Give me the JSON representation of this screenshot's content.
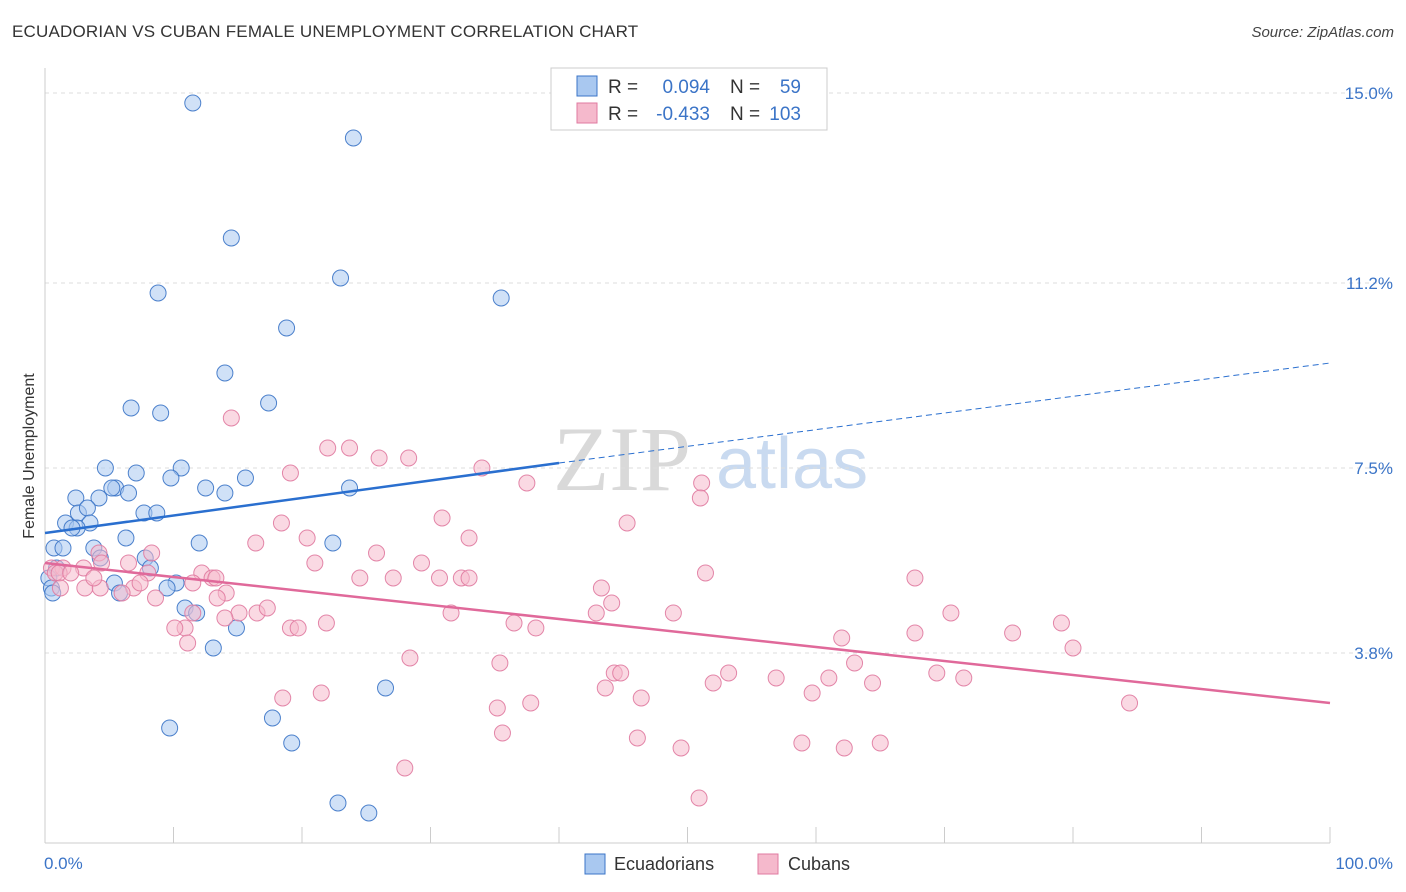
{
  "title": "ECUADORIAN VS CUBAN FEMALE UNEMPLOYMENT CORRELATION CHART",
  "source": "Source: ZipAtlas.com",
  "watermark": {
    "zip": "ZIP",
    "atlas": "atlas"
  },
  "colors": {
    "blue": "#3b74c7",
    "blue_fill": "#a9c8f0",
    "blue_line": "#2a6fcf",
    "pink": "#e07aa0",
    "pink_fill": "#f5b9cc",
    "pink_line": "#e0699a",
    "grid": "#dddddd"
  },
  "legend": {
    "rows": [
      {
        "r_label": "R =",
        "r_value": "0.094",
        "n_label": "N =",
        "n_value": "59"
      },
      {
        "r_label": "R =",
        "r_value": "-0.433",
        "n_label": "N =",
        "n_value": "103"
      }
    ]
  },
  "bottom_legend": {
    "items": [
      "Ecuadorians",
      "Cubans"
    ]
  },
  "chart_data": {
    "type": "scatter",
    "title": "ECUADORIAN VS CUBAN FEMALE UNEMPLOYMENT CORRELATION CHART",
    "xlabel": "",
    "ylabel": "Female Unemployment",
    "xlim": [
      0,
      100
    ],
    "ylim": [
      0,
      15.5
    ],
    "x_tick_labels": [
      "0.0%",
      "100.0%"
    ],
    "y_ticks": [
      3.8,
      7.5,
      11.2,
      15.0
    ],
    "y_tick_labels": [
      "3.8%",
      "7.5%",
      "11.2%",
      "15.0%"
    ],
    "series": [
      {
        "name": "Ecuadorians",
        "trend": {
          "x0": 0,
          "y0": 6.2,
          "x1": 40,
          "y1": 7.6,
          "x_dashed_end": 100,
          "y_dashed_end": 9.6
        },
        "points": [
          [
            11.5,
            14.8
          ],
          [
            24.0,
            14.1
          ],
          [
            14.5,
            12.1
          ],
          [
            23.0,
            11.3
          ],
          [
            8.8,
            11.0
          ],
          [
            35.5,
            10.9
          ],
          [
            18.8,
            10.3
          ],
          [
            14.0,
            9.4
          ],
          [
            17.4,
            8.8
          ],
          [
            6.7,
            8.7
          ],
          [
            9.0,
            8.6
          ],
          [
            10.6,
            7.5
          ],
          [
            4.7,
            7.5
          ],
          [
            7.1,
            7.4
          ],
          [
            9.8,
            7.3
          ],
          [
            15.6,
            7.3
          ],
          [
            23.7,
            7.1
          ],
          [
            12.5,
            7.1
          ],
          [
            5.5,
            7.1
          ],
          [
            5.2,
            7.1
          ],
          [
            6.5,
            7.0
          ],
          [
            14.0,
            7.0
          ],
          [
            2.4,
            6.9
          ],
          [
            4.2,
            6.9
          ],
          [
            2.6,
            6.6
          ],
          [
            3.3,
            6.7
          ],
          [
            7.7,
            6.6
          ],
          [
            8.7,
            6.6
          ],
          [
            1.6,
            6.4
          ],
          [
            3.5,
            6.4
          ],
          [
            2.5,
            6.3
          ],
          [
            2.1,
            6.3
          ],
          [
            6.3,
            6.1
          ],
          [
            22.4,
            6.0
          ],
          [
            12.0,
            6.0
          ],
          [
            0.7,
            5.9
          ],
          [
            1.4,
            5.9
          ],
          [
            3.8,
            5.9
          ],
          [
            4.3,
            5.7
          ],
          [
            7.8,
            5.7
          ],
          [
            0.9,
            5.5
          ],
          [
            8.2,
            5.5
          ],
          [
            0.3,
            5.3
          ],
          [
            5.4,
            5.2
          ],
          [
            10.2,
            5.2
          ],
          [
            9.5,
            5.1
          ],
          [
            0.5,
            5.1
          ],
          [
            0.6,
            5.0
          ],
          [
            5.8,
            5.0
          ],
          [
            10.9,
            4.7
          ],
          [
            11.8,
            4.6
          ],
          [
            14.9,
            4.3
          ],
          [
            13.1,
            3.9
          ],
          [
            26.5,
            3.1
          ],
          [
            17.7,
            2.5
          ],
          [
            9.7,
            2.3
          ],
          [
            19.2,
            2.0
          ],
          [
            22.8,
            0.8
          ],
          [
            25.2,
            0.6
          ]
        ]
      },
      {
        "name": "Cubans",
        "trend": {
          "x0": 0,
          "y0": 5.6,
          "x1": 100,
          "y1": 2.8
        },
        "points": [
          [
            14.5,
            8.5
          ],
          [
            22.0,
            7.9
          ],
          [
            23.7,
            7.9
          ],
          [
            26.0,
            7.7
          ],
          [
            28.3,
            7.7
          ],
          [
            34.0,
            7.5
          ],
          [
            19.1,
            7.4
          ],
          [
            37.5,
            7.2
          ],
          [
            51.1,
            7.2
          ],
          [
            51.0,
            6.9
          ],
          [
            30.9,
            6.5
          ],
          [
            45.3,
            6.4
          ],
          [
            18.4,
            6.4
          ],
          [
            20.4,
            6.1
          ],
          [
            33.0,
            6.1
          ],
          [
            16.4,
            6.0
          ],
          [
            25.8,
            5.8
          ],
          [
            8.3,
            5.8
          ],
          [
            4.2,
            5.8
          ],
          [
            4.4,
            5.6
          ],
          [
            6.5,
            5.6
          ],
          [
            21.0,
            5.6
          ],
          [
            29.3,
            5.6
          ],
          [
            0.5,
            5.5
          ],
          [
            1.4,
            5.5
          ],
          [
            3.0,
            5.5
          ],
          [
            0.8,
            5.4
          ],
          [
            1.1,
            5.4
          ],
          [
            2.0,
            5.4
          ],
          [
            8.0,
            5.4
          ],
          [
            12.2,
            5.4
          ],
          [
            13.0,
            5.3
          ],
          [
            24.5,
            5.3
          ],
          [
            27.1,
            5.3
          ],
          [
            30.7,
            5.3
          ],
          [
            32.4,
            5.3
          ],
          [
            33.0,
            5.3
          ],
          [
            51.4,
            5.4
          ],
          [
            67.7,
            5.3
          ],
          [
            11.5,
            5.2
          ],
          [
            1.2,
            5.1
          ],
          [
            3.1,
            5.1
          ],
          [
            4.3,
            5.1
          ],
          [
            6.9,
            5.1
          ],
          [
            14.1,
            5.0
          ],
          [
            43.3,
            5.1
          ],
          [
            8.6,
            4.9
          ],
          [
            13.4,
            4.9
          ],
          [
            11.5,
            4.6
          ],
          [
            15.1,
            4.6
          ],
          [
            16.5,
            4.6
          ],
          [
            17.3,
            4.7
          ],
          [
            31.6,
            4.6
          ],
          [
            42.9,
            4.6
          ],
          [
            44.1,
            4.8
          ],
          [
            48.9,
            4.6
          ],
          [
            70.5,
            4.6
          ],
          [
            14.0,
            4.5
          ],
          [
            10.9,
            4.3
          ],
          [
            10.1,
            4.3
          ],
          [
            19.1,
            4.3
          ],
          [
            19.7,
            4.3
          ],
          [
            21.9,
            4.4
          ],
          [
            36.5,
            4.4
          ],
          [
            38.2,
            4.3
          ],
          [
            62.0,
            4.1
          ],
          [
            75.3,
            4.2
          ],
          [
            79.1,
            4.4
          ],
          [
            67.7,
            4.2
          ],
          [
            11.1,
            4.0
          ],
          [
            28.4,
            3.7
          ],
          [
            63.0,
            3.6
          ],
          [
            80.0,
            3.9
          ],
          [
            35.4,
            3.6
          ],
          [
            44.3,
            3.4
          ],
          [
            44.8,
            3.4
          ],
          [
            69.4,
            3.4
          ],
          [
            61.0,
            3.3
          ],
          [
            71.5,
            3.3
          ],
          [
            53.2,
            3.4
          ],
          [
            52.0,
            3.2
          ],
          [
            56.9,
            3.3
          ],
          [
            64.4,
            3.2
          ],
          [
            43.6,
            3.1
          ],
          [
            46.4,
            2.9
          ],
          [
            35.2,
            2.7
          ],
          [
            37.8,
            2.8
          ],
          [
            18.5,
            2.9
          ],
          [
            21.5,
            3.0
          ],
          [
            59.7,
            3.0
          ],
          [
            84.4,
            2.8
          ],
          [
            35.6,
            2.2
          ],
          [
            49.5,
            1.9
          ],
          [
            46.1,
            2.1
          ],
          [
            58.9,
            2.0
          ],
          [
            62.2,
            1.9
          ],
          [
            65.0,
            2.0
          ],
          [
            28.0,
            1.5
          ],
          [
            50.9,
            0.9
          ],
          [
            13.3,
            5.3
          ],
          [
            3.8,
            5.3
          ],
          [
            7.4,
            5.2
          ],
          [
            6.0,
            5.0
          ]
        ]
      }
    ]
  }
}
